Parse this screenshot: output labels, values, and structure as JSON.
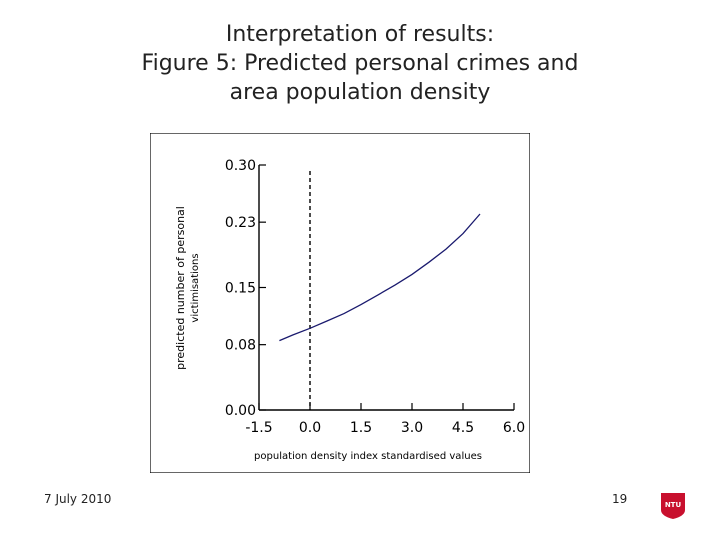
{
  "slide": {
    "title_lines": [
      "Interpretation of results:",
      "Figure 5: Predicted personal crimes and",
      "area population density"
    ],
    "date": "7 July 2010",
    "page_number": "19",
    "logo_text": "NTU"
  },
  "chart_data": {
    "type": "line",
    "ylabel_lines": [
      "predicted number of personal",
      "victimisations"
    ],
    "xlabel": "population density index standardised values",
    "x_ticks": [
      "-1.5",
      "0.0",
      "1.5",
      "3.0",
      "4.5",
      "6.0"
    ],
    "y_ticks": [
      "0.00",
      "0.08",
      "0.15",
      "0.23",
      "0.30"
    ],
    "xlim": [
      -1.5,
      6.0
    ],
    "ylim": [
      0.0,
      0.3
    ],
    "reference_line_x": 0.0,
    "series": [
      {
        "x": [
          -0.9,
          -0.5,
          0.0,
          0.5,
          1.0,
          1.5,
          2.0,
          2.5,
          3.0,
          3.5,
          4.0,
          4.5,
          5.0
        ],
        "y": [
          0.085,
          0.092,
          0.1,
          0.109,
          0.118,
          0.129,
          0.141,
          0.153,
          0.166,
          0.181,
          0.197,
          0.216,
          0.24
        ]
      }
    ],
    "colors": {
      "line": "#1a1a6e",
      "axis": "#000000",
      "panel_border": "#000000"
    }
  }
}
